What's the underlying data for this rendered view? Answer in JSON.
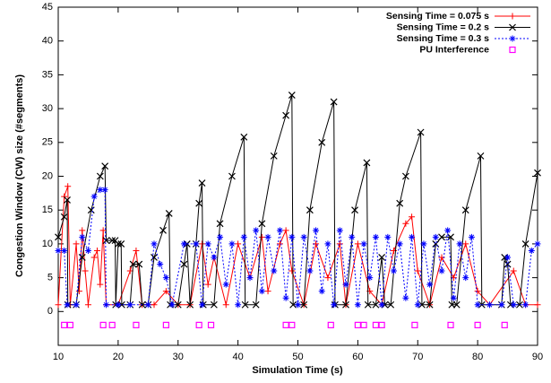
{
  "chart_data": {
    "type": "line",
    "xlabel": "Simulation Time (s)",
    "ylabel": "Congestion Window (CW) size (#segments)",
    "xlim": [
      10,
      90
    ],
    "ylim": [
      -5,
      45
    ],
    "xticks": [
      10,
      20,
      30,
      40,
      50,
      60,
      70,
      80,
      90
    ],
    "yticks": [
      0,
      5,
      10,
      15,
      20,
      25,
      30,
      35,
      40,
      45
    ],
    "legend": "top-right",
    "series": [
      {
        "name": "Sensing Time = 0.075 s",
        "color": "#ff0000",
        "marker": "plus",
        "style": "linespoints",
        "x": [
          10,
          11,
          11.6,
          12,
          13,
          13.5,
          14,
          14.5,
          15,
          16,
          16.5,
          17,
          17.5,
          18,
          20,
          22,
          23,
          24,
          26,
          28,
          30,
          32,
          34,
          35,
          36,
          38,
          40,
          42,
          44,
          45,
          47,
          48,
          49,
          51,
          53,
          55,
          57,
          58,
          60,
          62,
          64,
          66,
          68,
          69,
          70,
          72,
          74,
          76,
          78,
          80,
          82,
          86,
          88,
          90
        ],
        "values": [
          1,
          17,
          18.5,
          1,
          10,
          3,
          12,
          6,
          1,
          8,
          9,
          4,
          12,
          1,
          1,
          6,
          9,
          1,
          1,
          3,
          1,
          1,
          10,
          4,
          8,
          1,
          10,
          5,
          11,
          3,
          10,
          12,
          6,
          1,
          10,
          5,
          10,
          1,
          10,
          3,
          1,
          9,
          13,
          14,
          6,
          1,
          8,
          5,
          10,
          3,
          1,
          6,
          1,
          1
        ]
      },
      {
        "name": "Sensing Time = 0.2 s",
        "color": "#000000",
        "marker": "cross",
        "style": "linespoints",
        "x": [
          10,
          11,
          11.5,
          11.6,
          13,
          14,
          15.5,
          17,
          17.8,
          18,
          19,
          19.5,
          19.6,
          20,
          20.5,
          20.6,
          22,
          22.5,
          23.5,
          24,
          25,
          26,
          27.5,
          28.5,
          28.7,
          30,
          31,
          31.5,
          32,
          33,
          33.5,
          34,
          34.2,
          36,
          37,
          39,
          41,
          41.2,
          43,
          44,
          46,
          48,
          49,
          49.2,
          51,
          52,
          54,
          56,
          56.2,
          58,
          59.5,
          61.5,
          61.7,
          63,
          64,
          64.5,
          65.5,
          67,
          68,
          70.5,
          70.7,
          72,
          73,
          74,
          75.5,
          75.7,
          76.5,
          78,
          80.5,
          80.7,
          84,
          84.5,
          85,
          85.5,
          87,
          88,
          90
        ],
        "values": [
          11,
          14,
          16.5,
          1,
          1,
          8,
          15,
          20,
          21.5,
          10.5,
          10.5,
          10.5,
          1,
          10,
          10,
          1,
          1,
          7,
          7,
          1,
          1,
          8,
          12,
          14.5,
          1,
          1,
          7,
          10,
          1,
          10,
          16,
          19,
          1,
          1,
          13,
          20,
          25.8,
          1,
          1,
          13,
          23,
          29,
          32,
          1,
          1,
          15,
          25,
          31,
          1,
          1,
          15,
          22,
          1,
          1,
          8,
          1,
          1,
          16,
          20,
          26.5,
          1,
          1,
          10,
          11,
          11,
          1,
          1,
          15,
          23,
          1,
          1,
          8,
          7,
          1,
          1,
          10,
          20.5
        ]
      },
      {
        "name": "Sensing Time = 0.3 s",
        "color": "#0000ff",
        "marker": "star",
        "style": "linespoints",
        "x": [
          10,
          11,
          11.5,
          13,
          14,
          15,
          16,
          17,
          17.8,
          18,
          20,
          22,
          25,
          26,
          27,
          28,
          29,
          31,
          33,
          34,
          35,
          36,
          37,
          38,
          39,
          40,
          41,
          42,
          43,
          44,
          45,
          46,
          47,
          48,
          49,
          50,
          51,
          52,
          53,
          54,
          55,
          56,
          57,
          58,
          59,
          60,
          61,
          62,
          63,
          64,
          65,
          66,
          67,
          68,
          69,
          70,
          71,
          72,
          73,
          74,
          75,
          76,
          77,
          78,
          79,
          80,
          82,
          84,
          85,
          86,
          88,
          89,
          90
        ],
        "values": [
          9,
          9,
          1,
          1,
          11,
          9,
          17,
          18,
          18,
          1,
          1,
          1,
          1,
          10,
          7,
          5,
          1,
          10,
          10,
          1,
          10,
          8,
          11,
          4,
          10,
          1,
          11,
          5,
          12,
          3,
          11,
          6,
          12,
          2,
          11,
          1,
          11,
          6,
          12,
          3,
          10,
          1,
          12,
          4,
          11,
          1,
          10,
          5,
          11,
          1,
          11,
          6,
          10,
          2,
          11,
          1,
          10,
          4,
          11,
          6,
          12,
          2,
          10,
          5,
          11,
          1,
          1,
          1,
          8,
          1,
          1,
          9,
          10
        ]
      },
      {
        "name": "PU Interference",
        "color": "#ff00ff",
        "marker": "square",
        "style": "points",
        "x": [
          11,
          12,
          17.5,
          19,
          23,
          28,
          33.5,
          35.5,
          48,
          49,
          55.5,
          60,
          61,
          63,
          64,
          69.5,
          75.5,
          80,
          84.5
        ],
        "values": [
          -2,
          -2,
          -2,
          -2,
          -2,
          -2,
          -2,
          -2,
          -2,
          -2,
          -2,
          -2,
          -2,
          -2,
          -2,
          -2,
          -2,
          -2,
          -2
        ]
      }
    ]
  }
}
